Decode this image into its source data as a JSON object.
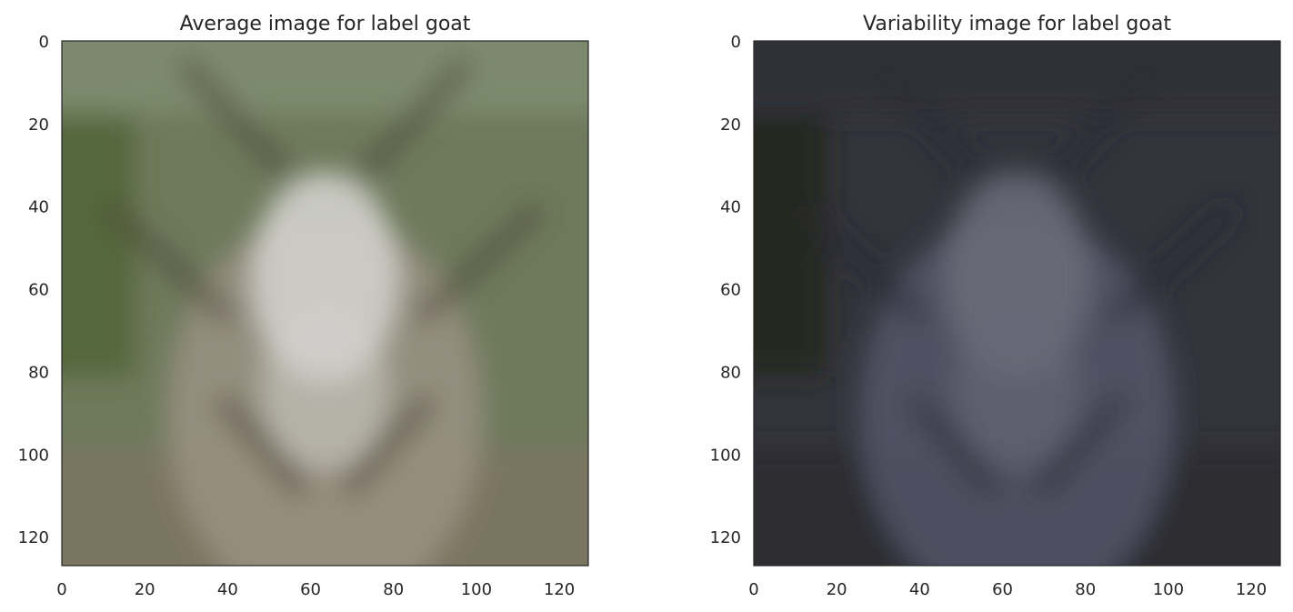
{
  "chart_data": [
    {
      "type": "heatmap",
      "title": "Average image for label goat",
      "xlabel": "",
      "ylabel": "",
      "xlim": [
        0,
        127
      ],
      "ylim": [
        127,
        0
      ],
      "x_ticks": [
        0,
        20,
        40,
        60,
        80,
        100,
        120
      ],
      "y_ticks": [
        0,
        20,
        40,
        60,
        80,
        100,
        120
      ],
      "grid": false,
      "palette": {
        "background": "#6f7a5c",
        "edge_top": "#7f8d72",
        "edge_left": "#4f6236",
        "edge_bottom": "#7d7462",
        "center": "#d2d0cc",
        "body": "#9a9284",
        "dark_marks": "#4e4838"
      }
    },
    {
      "type": "heatmap",
      "title": "Variability image for label goat",
      "xlabel": "",
      "ylabel": "",
      "xlim": [
        0,
        127
      ],
      "ylim": [
        127,
        0
      ],
      "x_ticks": [
        0,
        20,
        40,
        60,
        80,
        100,
        120
      ],
      "y_ticks": [
        0,
        20,
        40,
        60,
        80,
        100,
        120
      ],
      "grid": false,
      "palette": {
        "background": "#34343c",
        "edge_top": "#2f3038",
        "edge_left": "#1f2418",
        "edge_bottom": "#2c2c30",
        "center": "#6a6a78",
        "body": "#55566a",
        "dark_marks": "#2a2b33"
      }
    }
  ]
}
